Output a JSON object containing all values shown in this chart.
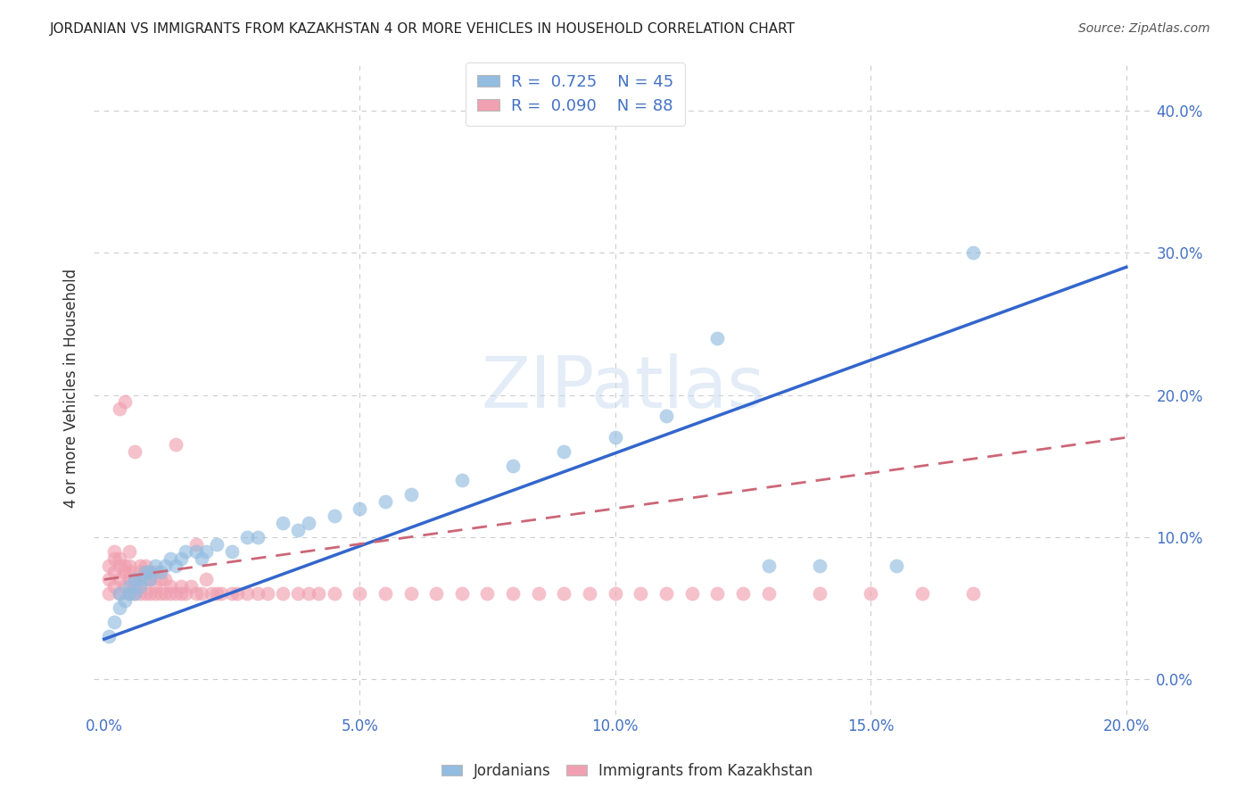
{
  "title": "JORDANIAN VS IMMIGRANTS FROM KAZAKHSTAN 4 OR MORE VEHICLES IN HOUSEHOLD CORRELATION CHART",
  "source": "Source: ZipAtlas.com",
  "ylabel": "4 or more Vehicles in Household",
  "xlim": [
    -0.002,
    0.205
  ],
  "ylim": [
    -0.025,
    0.435
  ],
  "jordanians_R": 0.725,
  "jordanians_N": 45,
  "kazakhstan_R": 0.09,
  "kazakhstan_N": 88,
  "blue_scatter_color": "#92bce0",
  "pink_scatter_color": "#f0a0b0",
  "blue_line_color": "#3366cc",
  "pink_line_color": "#cc6677",
  "legend_label_blue": "Jordanians",
  "legend_label_pink": "Immigrants from Kazakhstan",
  "background_color": "#ffffff",
  "grid_color": "#cccccc",
  "title_color": "#222222",
  "axis_tick_color": "#4472c4",
  "watermark_text": "ZIPatlas",
  "watermark_color": "#c8daf0",
  "jord_x": [
    0.001,
    0.002,
    0.003,
    0.003,
    0.004,
    0.005,
    0.005,
    0.006,
    0.006,
    0.007,
    0.007,
    0.008,
    0.009,
    0.009,
    0.01,
    0.011,
    0.012,
    0.013,
    0.014,
    0.015,
    0.016,
    0.018,
    0.019,
    0.02,
    0.022,
    0.025,
    0.028,
    0.03,
    0.035,
    0.038,
    0.04,
    0.045,
    0.05,
    0.055,
    0.06,
    0.07,
    0.08,
    0.09,
    0.1,
    0.11,
    0.12,
    0.13,
    0.14,
    0.155,
    0.17
  ],
  "jord_y": [
    0.03,
    0.04,
    0.05,
    0.06,
    0.055,
    0.06,
    0.065,
    0.06,
    0.07,
    0.065,
    0.07,
    0.075,
    0.07,
    0.075,
    0.08,
    0.075,
    0.08,
    0.085,
    0.08,
    0.085,
    0.09,
    0.09,
    0.085,
    0.09,
    0.095,
    0.09,
    0.1,
    0.1,
    0.11,
    0.105,
    0.11,
    0.115,
    0.12,
    0.125,
    0.13,
    0.14,
    0.15,
    0.16,
    0.17,
    0.185,
    0.24,
    0.08,
    0.08,
    0.08,
    0.3
  ],
  "kaz_x": [
    0.001,
    0.001,
    0.001,
    0.002,
    0.002,
    0.002,
    0.002,
    0.003,
    0.003,
    0.003,
    0.003,
    0.003,
    0.004,
    0.004,
    0.004,
    0.004,
    0.005,
    0.005,
    0.005,
    0.005,
    0.005,
    0.006,
    0.006,
    0.006,
    0.006,
    0.007,
    0.007,
    0.007,
    0.007,
    0.008,
    0.008,
    0.008,
    0.009,
    0.009,
    0.009,
    0.01,
    0.01,
    0.01,
    0.011,
    0.011,
    0.012,
    0.012,
    0.013,
    0.013,
    0.014,
    0.014,
    0.015,
    0.015,
    0.016,
    0.017,
    0.018,
    0.018,
    0.019,
    0.02,
    0.021,
    0.022,
    0.023,
    0.025,
    0.026,
    0.028,
    0.03,
    0.032,
    0.035,
    0.038,
    0.04,
    0.042,
    0.045,
    0.05,
    0.055,
    0.06,
    0.065,
    0.07,
    0.075,
    0.08,
    0.085,
    0.09,
    0.095,
    0.1,
    0.105,
    0.11,
    0.115,
    0.12,
    0.125,
    0.13,
    0.14,
    0.15,
    0.16,
    0.17
  ],
  "kaz_y": [
    0.06,
    0.07,
    0.08,
    0.065,
    0.075,
    0.085,
    0.09,
    0.06,
    0.07,
    0.08,
    0.085,
    0.19,
    0.065,
    0.075,
    0.08,
    0.195,
    0.06,
    0.07,
    0.075,
    0.08,
    0.09,
    0.06,
    0.065,
    0.07,
    0.16,
    0.06,
    0.065,
    0.075,
    0.08,
    0.06,
    0.07,
    0.08,
    0.06,
    0.07,
    0.075,
    0.06,
    0.065,
    0.075,
    0.06,
    0.07,
    0.06,
    0.07,
    0.06,
    0.065,
    0.06,
    0.165,
    0.06,
    0.065,
    0.06,
    0.065,
    0.06,
    0.095,
    0.06,
    0.07,
    0.06,
    0.06,
    0.06,
    0.06,
    0.06,
    0.06,
    0.06,
    0.06,
    0.06,
    0.06,
    0.06,
    0.06,
    0.06,
    0.06,
    0.06,
    0.06,
    0.06,
    0.06,
    0.06,
    0.06,
    0.06,
    0.06,
    0.06,
    0.06,
    0.06,
    0.06,
    0.06,
    0.06,
    0.06,
    0.06,
    0.06,
    0.06,
    0.06,
    0.06
  ],
  "jord_line_x": [
    0.0,
    0.2
  ],
  "jord_line_y": [
    0.028,
    0.29
  ],
  "kaz_line_x": [
    0.0,
    0.2
  ],
  "kaz_line_y": [
    0.07,
    0.17
  ],
  "x_ticks": [
    0.0,
    0.05,
    0.1,
    0.15,
    0.2
  ],
  "x_tick_labels": [
    "0.0%",
    "5.0%",
    "10.0%",
    "15.0%",
    "20.0%"
  ],
  "y_ticks": [
    0.0,
    0.1,
    0.2,
    0.3,
    0.4
  ],
  "y_tick_labels": [
    "0.0%",
    "10.0%",
    "20.0%",
    "30.0%",
    "40.0%"
  ]
}
